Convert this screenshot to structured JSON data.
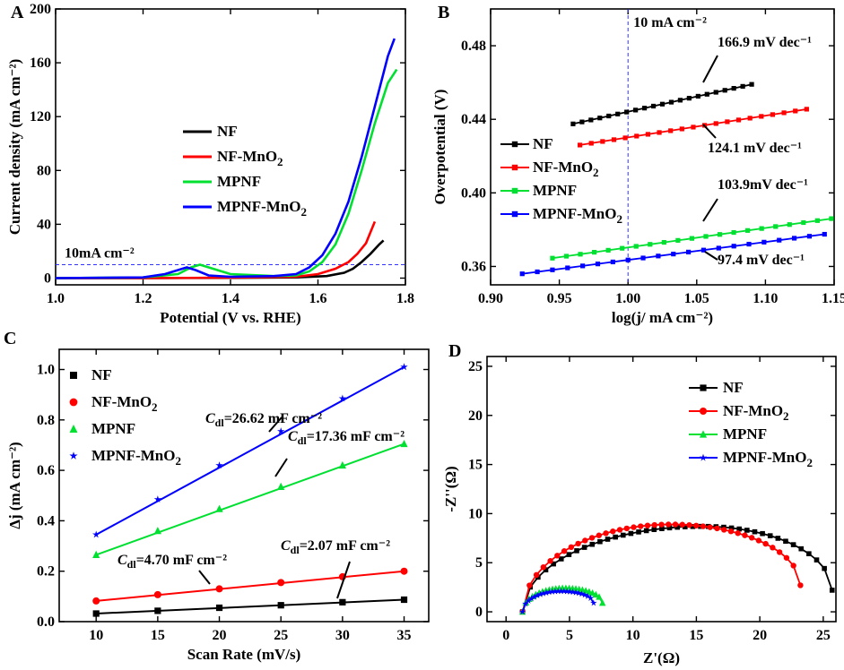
{
  "colors": {
    "NF": "#000000",
    "NF-MnO2": "#ff0000",
    "MPNF": "#00e030",
    "MPNF-MnO2": "#0000ff",
    "ref": "#3333ff"
  },
  "chart_data": [
    {
      "panel": "A",
      "type": "line",
      "xlabel": "Potential (V vs. RHE)",
      "ylabel": "Current density (mA cm⁻²)",
      "xlim": [
        1.0,
        1.8
      ],
      "ylim": [
        -5,
        200
      ],
      "xticks": [
        1.0,
        1.2,
        1.4,
        1.6,
        1.8
      ],
      "xtick_labels": [
        "1.0",
        "1.2",
        "1.4",
        "1.6",
        "1.8"
      ],
      "yticks": [
        0,
        40,
        80,
        120,
        160,
        200
      ],
      "ytick_labels": [
        "0",
        "40",
        "80",
        "120",
        "160",
        "200"
      ],
      "ref_label": "10mA cm⁻²",
      "ref_y": 10,
      "legend": [
        "NF",
        "NF-MnO₂",
        "MPNF",
        "MPNF-MnO₂"
      ],
      "series": [
        {
          "name": "NF",
          "x": [
            1.0,
            1.2,
            1.4,
            1.55,
            1.62,
            1.66,
            1.68,
            1.7,
            1.72,
            1.74,
            1.75
          ],
          "y": [
            0,
            0,
            0.2,
            0.5,
            1.5,
            4,
            7,
            12,
            18,
            25,
            28
          ]
        },
        {
          "name": "NF-MnO2",
          "x": [
            1.0,
            1.2,
            1.4,
            1.55,
            1.6,
            1.64,
            1.67,
            1.69,
            1.71,
            1.72,
            1.73
          ],
          "y": [
            0,
            0,
            0.3,
            1,
            3,
            7,
            12,
            18,
            26,
            34,
            42
          ]
        },
        {
          "name": "MPNF",
          "x": [
            1.0,
            1.2,
            1.28,
            1.31,
            1.33,
            1.36,
            1.4,
            1.5,
            1.55,
            1.58,
            1.61,
            1.64,
            1.67,
            1.7,
            1.73,
            1.76,
            1.78
          ],
          "y": [
            0,
            0.5,
            3,
            8,
            10,
            7,
            3,
            1.5,
            2,
            5,
            12,
            25,
            48,
            80,
            115,
            145,
            155
          ]
        },
        {
          "name": "MPNF-MnO2",
          "x": [
            1.0,
            1.2,
            1.25,
            1.28,
            1.3,
            1.32,
            1.35,
            1.4,
            1.5,
            1.55,
            1.58,
            1.61,
            1.64,
            1.67,
            1.7,
            1.72,
            1.74,
            1.76,
            1.775
          ],
          "y": [
            0,
            0.5,
            3,
            6,
            8,
            6,
            2,
            1,
            1.5,
            3,
            8,
            17,
            33,
            57,
            90,
            115,
            140,
            165,
            178
          ]
        }
      ]
    },
    {
      "panel": "B",
      "type": "line",
      "xlabel": "log(j/ mA cm⁻²)",
      "ylabel": "Overpotential (V)",
      "xlim": [
        0.9,
        1.15
      ],
      "ylim": [
        0.35,
        0.5
      ],
      "xticks": [
        0.9,
        0.95,
        1.0,
        1.05,
        1.1,
        1.15
      ],
      "xtick_labels": [
        "0.90",
        "0.95",
        "1.00",
        "1.05",
        "1.10",
        "1.15"
      ],
      "yticks": [
        0.36,
        0.4,
        0.44,
        0.48
      ],
      "ytick_labels": [
        "0.36",
        "0.40",
        "0.44",
        "0.48"
      ],
      "vline_x": 1.0,
      "vline_label": "10 mA cm⁻²",
      "legend": [
        "NF",
        "NF-MnO₂",
        "MPNF",
        "MPNF-MnO₂"
      ],
      "annotations": [
        "166.9 mV dec⁻¹",
        "124.1 mV dec⁻¹",
        "103.9mV dec⁻¹",
        "97.4 mV dec⁻¹"
      ],
      "series": [
        {
          "name": "NF",
          "x_start": 0.96,
          "x_end": 1.09,
          "y_start": 0.4375,
          "y_end": 0.459
        },
        {
          "name": "NF-MnO2",
          "x_start": 0.965,
          "x_end": 1.13,
          "y_start": 0.426,
          "y_end": 0.4455
        },
        {
          "name": "MPNF",
          "x_start": 0.945,
          "x_end": 1.148,
          "y_start": 0.3645,
          "y_end": 0.386
        },
        {
          "name": "MPNF-MnO2",
          "x_start": 0.923,
          "x_end": 1.143,
          "y_start": 0.356,
          "y_end": 0.3775
        }
      ]
    },
    {
      "panel": "C",
      "type": "scatter",
      "xlabel": "Scan Rate (mV/s)",
      "ylabel": "Δj (mA cm⁻²)",
      "xlim": [
        7,
        37
      ],
      "ylim": [
        0,
        1.08
      ],
      "xticks": [
        10,
        15,
        20,
        25,
        30,
        35
      ],
      "xtick_labels": [
        "10",
        "15",
        "20",
        "25",
        "30",
        "35"
      ],
      "yticks": [
        0.0,
        0.2,
        0.4,
        0.6,
        0.8,
        1.0
      ],
      "ytick_labels": [
        "0.0",
        "0.2",
        "0.4",
        "0.6",
        "0.8",
        "1.0"
      ],
      "legend": [
        "NF",
        "NF-MnO₂",
        "MPNF",
        "MPNF-MnO₂"
      ],
      "annotation_prefix": "C",
      "annotation_sub": "dl",
      "annotations": [
        "=26.62 mF cm⁻²",
        "=17.36 mF cm⁻²",
        "=4.70 mF cm⁻²",
        "=2.07 mF cm⁻²"
      ],
      "x": [
        10,
        15,
        20,
        25,
        30,
        35
      ],
      "series": [
        {
          "name": "NF",
          "values": [
            0.032,
            0.043,
            0.055,
            0.065,
            0.077,
            0.087
          ]
        },
        {
          "name": "NF-MnO2",
          "values": [
            0.082,
            0.107,
            0.13,
            0.155,
            0.178,
            0.2
          ]
        },
        {
          "name": "MPNF",
          "values": [
            0.265,
            0.36,
            0.447,
            0.535,
            0.62,
            0.705
          ]
        },
        {
          "name": "MPNF-MnO2",
          "values": [
            0.345,
            0.485,
            0.62,
            0.755,
            0.885,
            1.01
          ]
        }
      ]
    },
    {
      "panel": "D",
      "type": "scatter",
      "xlabel": "Z'(Ω)",
      "ylabel": "-Z''(Ω)",
      "xlim": [
        -1.5,
        26
      ],
      "ylim": [
        -1,
        26
      ],
      "xticks": [
        0,
        5,
        10,
        15,
        20,
        25
      ],
      "xtick_labels": [
        "0",
        "5",
        "10",
        "15",
        "20",
        "25"
      ],
      "yticks": [
        0,
        5,
        10,
        15,
        20,
        25
      ],
      "ytick_labels": [
        "0",
        "5",
        "10",
        "15",
        "20",
        "25"
      ],
      "legend": [
        "NF",
        "NF-MnO₂",
        "MPNF",
        "MPNF-MnO₂"
      ],
      "series": [
        {
          "name": "NF",
          "xmin": 1.3,
          "xmax": 25.7,
          "peak": 8.7,
          "peak_x": 15.5,
          "tail": 2.2
        },
        {
          "name": "NF-MnO2",
          "xmin": 1.3,
          "xmax": 23.2,
          "peak": 8.9,
          "peak_x": 13.0,
          "tail": 2.7
        },
        {
          "name": "MPNF",
          "xmin": 1.3,
          "xmax": 7.6,
          "peak": 2.4,
          "peak_x": 4.6,
          "tail": 0.9
        },
        {
          "name": "MPNF-MnO2",
          "xmin": 1.3,
          "xmax": 6.9,
          "peak": 2.1,
          "peak_x": 4.3,
          "tail": 0.9
        }
      ]
    }
  ]
}
